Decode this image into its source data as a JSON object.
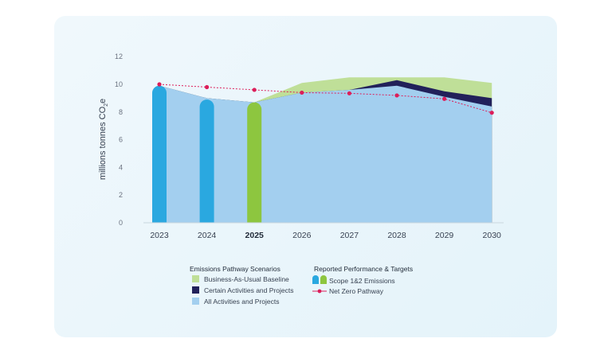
{
  "chart_data": {
    "type": "area",
    "ylabel_main": "millions tonnes CO",
    "ylabel_sub": "2",
    "ylabel_end": "e",
    "ylim": [
      0,
      12
    ],
    "yticks": [
      "0",
      "2",
      "4",
      "6",
      "8",
      "10",
      "12"
    ],
    "x": [
      "2023",
      "2024",
      "2025",
      "2026",
      "2027",
      "2028",
      "2029",
      "2030"
    ],
    "highlight_x": "2025",
    "areas": [
      {
        "name": "Business-As-Usual Baseline",
        "color": "#bfdf98",
        "values": [
          9.9,
          9.0,
          8.7,
          10.1,
          10.5,
          10.5,
          10.5,
          10.1
        ]
      },
      {
        "name": "Certain Activities and Projects",
        "color": "#22215a",
        "values": [
          9.9,
          9.0,
          8.7,
          9.4,
          9.6,
          10.3,
          9.5,
          9.0
        ]
      },
      {
        "name": "All Activities and Projects",
        "color": "#a3cfef",
        "values": [
          9.9,
          9.0,
          8.7,
          9.4,
          9.6,
          9.9,
          9.1,
          8.4
        ]
      }
    ],
    "bars": [
      {
        "x": "2023",
        "value": 9.9,
        "color": "#2aa8e0"
      },
      {
        "x": "2024",
        "value": 8.9,
        "color": "#2aa8e0"
      },
      {
        "x": "2025",
        "value": 8.7,
        "color": "#8dc63f"
      }
    ],
    "line": {
      "name": "Net Zero Pathway",
      "color": "#dc1e5a",
      "values": [
        10.0,
        9.8,
        9.6,
        9.4,
        9.35,
        9.2,
        8.95,
        7.95
      ]
    },
    "legend": {
      "scenarios_title": "Emissions Pathway Scenarios",
      "scenarios": [
        {
          "label": "Business-As-Usual Baseline",
          "color": "#bfdf98"
        },
        {
          "label": "Certain Activities and Projects",
          "color": "#22215a"
        },
        {
          "label": "All Activities and Projects",
          "color": "#a3cfef"
        }
      ],
      "reported_title": "Reported Performance & Targets",
      "reported": [
        {
          "label": "Scope 1&2 Emissions",
          "kind": "bars",
          "colors": [
            "#2aa8e0",
            "#8dc63f"
          ]
        },
        {
          "label": "Net Zero Pathway",
          "kind": "line",
          "color": "#dc1e5a"
        }
      ]
    }
  }
}
